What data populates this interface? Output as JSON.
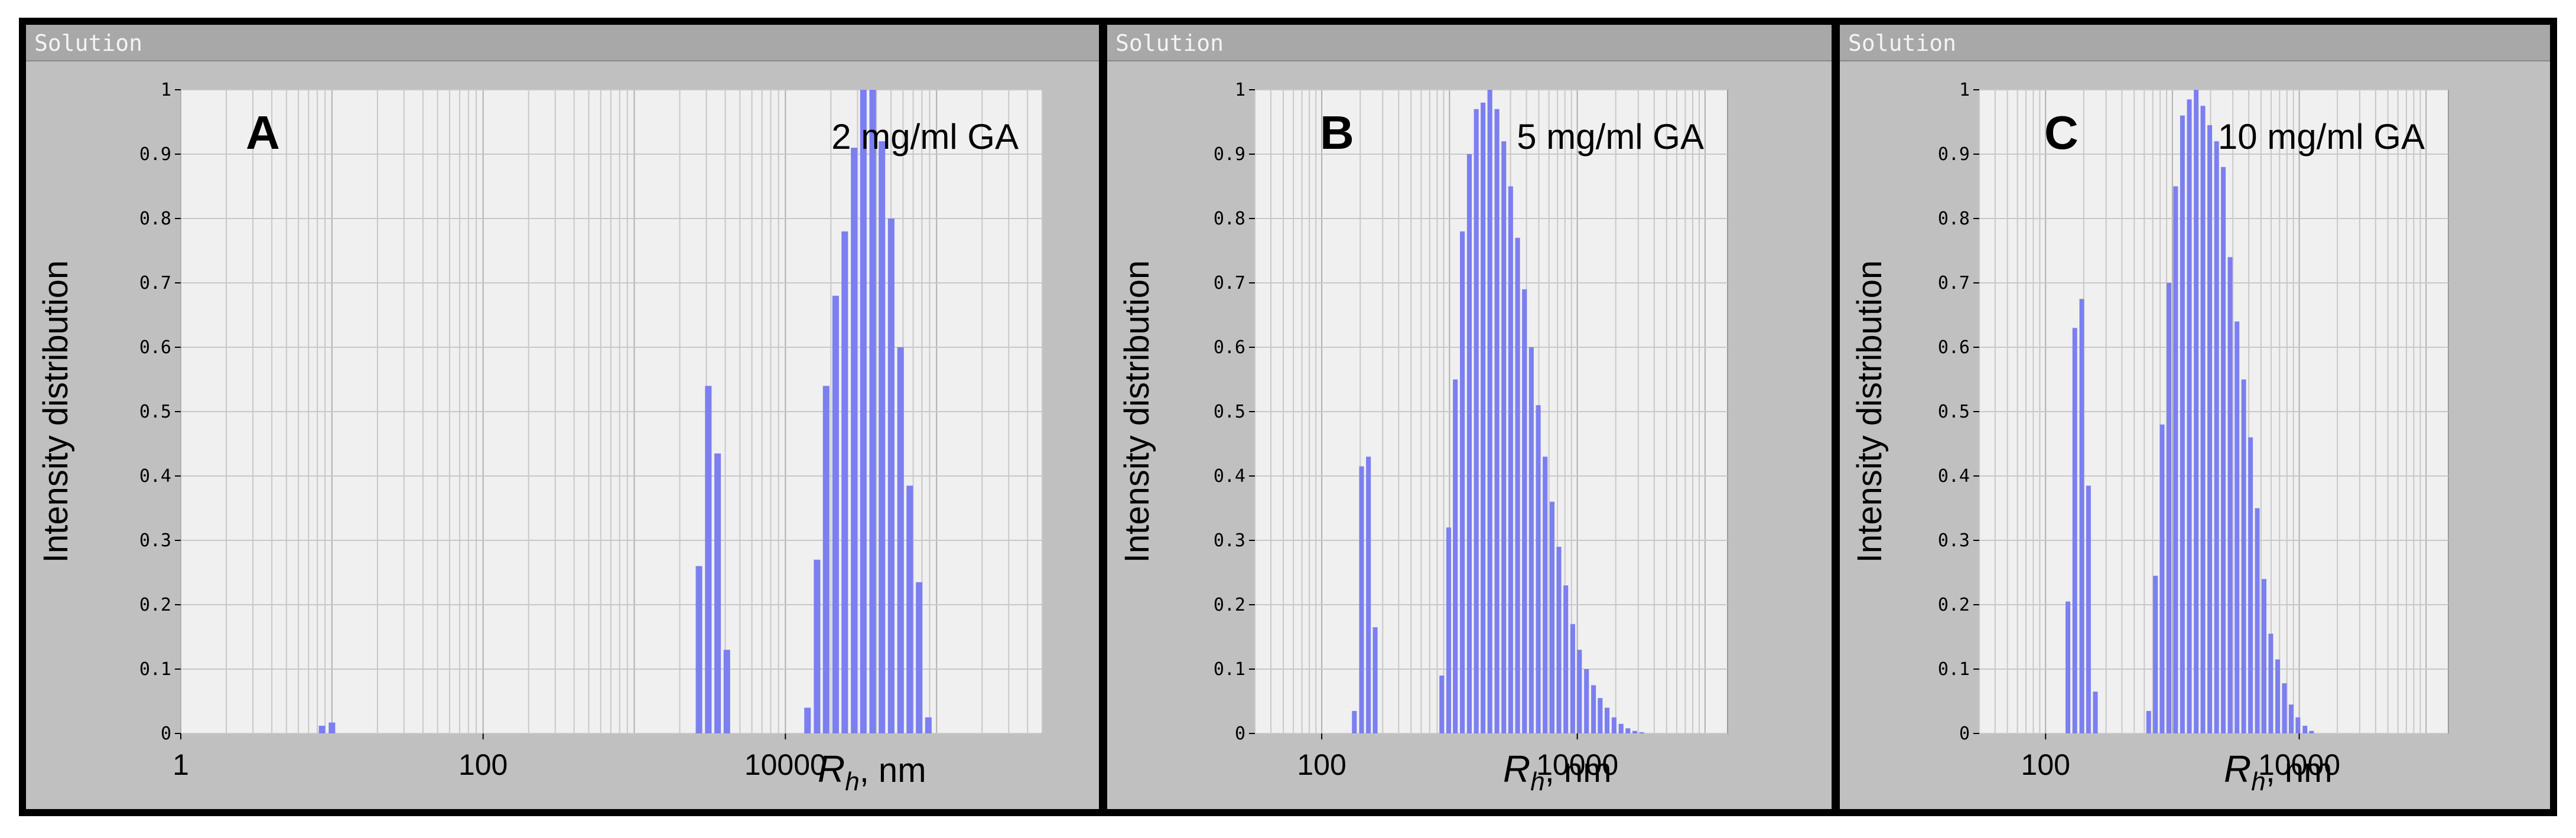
{
  "colors": {
    "bar": "#7b7ff0",
    "plot_bg": "#f0f0f0",
    "panel_bg": "#c0c0c0",
    "grid": "#c8c8c8"
  },
  "chart_data": [
    {
      "type": "bar",
      "window_title": "Solution",
      "panel_letter": "A",
      "annotation": "2 mg/ml GA",
      "title": "",
      "ylabel": "Intensity distribution",
      "xlabel_var": "R",
      "xlabel_sub": "h",
      "xlabel_unit": ",  nm",
      "x_scale": "log",
      "xlim": [
        1,
        500000
      ],
      "ylim": [
        0,
        1
      ],
      "x_ticks": [
        1,
        100,
        10000
      ],
      "x_tick_labels": [
        "1",
        "100",
        "10000"
      ],
      "y_ticks": [
        "0",
        "0.1",
        "0.2",
        "0.3",
        "0.4",
        "0.5",
        "0.6",
        "0.7",
        "0.8",
        "0.9",
        "1"
      ],
      "grid": true,
      "x": [
        8.6,
        10,
        2680,
        3090,
        3560,
        4100,
        14000,
        16200,
        18600,
        21500,
        24700,
        28500,
        32800,
        37800,
        43500,
        50100,
        57800,
        66500,
        76700,
        88300
      ],
      "values": [
        0.012,
        0.017,
        0.26,
        0.54,
        0.435,
        0.13,
        0.04,
        0.27,
        0.54,
        0.68,
        0.78,
        0.91,
        1.0,
        1.0,
        0.92,
        0.8,
        0.6,
        0.385,
        0.235,
        0.025
      ]
    },
    {
      "type": "bar",
      "window_title": "Solution",
      "panel_letter": "B",
      "annotation": "5 mg/ml GA",
      "title": "",
      "ylabel": "Intensity distribution",
      "xlabel_var": "R",
      "xlabel_sub": "h",
      "xlabel_unit": ",  nm",
      "x_scale": "log",
      "xlim": [
        30,
        150000
      ],
      "ylim": [
        0,
        1
      ],
      "x_ticks": [
        100,
        10000
      ],
      "x_tick_labels": [
        "100",
        "10000"
      ],
      "y_ticks": [
        "0",
        "0.1",
        "0.2",
        "0.3",
        "0.4",
        "0.5",
        "0.6",
        "0.7",
        "0.8",
        "0.9",
        "1"
      ],
      "grid": true,
      "x": [
        180,
        205,
        232,
        262,
        870,
        985,
        1110,
        1260,
        1430,
        1620,
        1830,
        2070,
        2350,
        2660,
        3010,
        3410,
        3860,
        4370,
        4950,
        5600,
        6350,
        7180,
        8130,
        9210,
        10400,
        11800,
        13400,
        15100,
        17100,
        19400,
        22000,
        24900,
        28200,
        31900
      ],
      "values": [
        0.035,
        0.415,
        0.43,
        0.165,
        0.09,
        0.32,
        0.55,
        0.78,
        0.9,
        0.97,
        0.98,
        1.0,
        0.97,
        0.92,
        0.85,
        0.77,
        0.69,
        0.6,
        0.51,
        0.43,
        0.36,
        0.29,
        0.23,
        0.17,
        0.13,
        0.1,
        0.075,
        0.055,
        0.04,
        0.025,
        0.015,
        0.008,
        0.004,
        0.002
      ]
    },
    {
      "type": "bar",
      "window_title": "Solution",
      "panel_letter": "C",
      "annotation": "10 mg/ml GA",
      "title": "",
      "ylabel": "Intensity distribution",
      "xlabel_var": "R",
      "xlabel_sub": "h",
      "xlabel_unit": ",  nm",
      "x_scale": "log",
      "xlim": [
        30,
        150000
      ],
      "ylim": [
        0,
        1
      ],
      "x_ticks": [
        100,
        10000
      ],
      "x_tick_labels": [
        "100",
        "10000"
      ],
      "y_ticks": [
        "0",
        "0.1",
        "0.2",
        "0.3",
        "0.4",
        "0.5",
        "0.6",
        "0.7",
        "0.8",
        "0.9",
        "1"
      ],
      "grid": true,
      "x": [
        150,
        170,
        193,
        218,
        247,
        650,
        735,
        830,
        940,
        1060,
        1200,
        1360,
        1540,
        1740,
        1970,
        2230,
        2520,
        2850,
        3230,
        3650,
        4130,
        4670,
        5280,
        5970,
        6760,
        7640,
        8640,
        9770,
        11100,
        12500
      ],
      "values": [
        0.205,
        0.63,
        0.675,
        0.385,
        0.065,
        0.035,
        0.245,
        0.48,
        0.7,
        0.85,
        0.96,
        0.985,
        1.0,
        0.975,
        0.945,
        0.92,
        0.88,
        0.74,
        0.64,
        0.55,
        0.46,
        0.35,
        0.24,
        0.155,
        0.115,
        0.078,
        0.045,
        0.025,
        0.012,
        0.004
      ]
    }
  ]
}
